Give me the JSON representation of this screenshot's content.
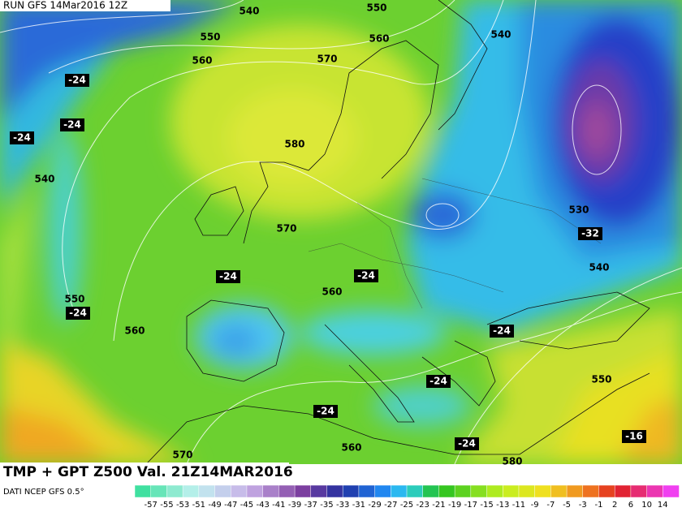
{
  "header": "RUN GFS 14Mar2016 12Z",
  "title": "TMP + GPT Z500 Val. 21Z14MAR2016",
  "source": "DATI NCEP GFS 0.5°",
  "height_labels": [
    540,
    550,
    550,
    560,
    540,
    560,
    570,
    580,
    540,
    530,
    570,
    540,
    560,
    550,
    560,
    550,
    560,
    570,
    580
  ],
  "temperature_labels": [
    -24,
    -24,
    -24,
    -32,
    -24,
    -24,
    -24,
    -24,
    -24,
    -24,
    -24,
    -16
  ],
  "colorbar": {
    "labels": [
      -57,
      -55,
      -53,
      -51,
      -49,
      -47,
      -45,
      -43,
      -41,
      -39,
      -37,
      -35,
      -33,
      -31,
      -29,
      -27,
      -25,
      -23,
      -21,
      -19,
      -17,
      -15,
      -13,
      -11,
      -9,
      -7,
      -5,
      -3,
      -1,
      2,
      6,
      10,
      14
    ]
  }
}
